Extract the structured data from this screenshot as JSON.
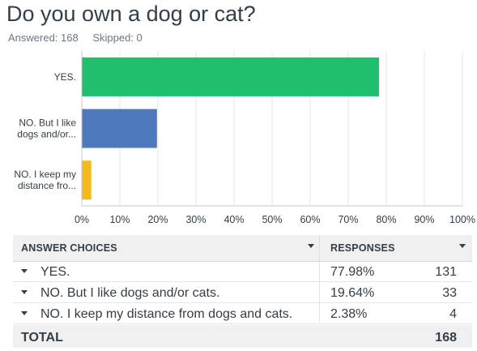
{
  "question": {
    "title": "Do you own a dog or cat?",
    "answered": "Answered: 168",
    "skipped": "Skipped: 0"
  },
  "chart_data": {
    "type": "bar",
    "orientation": "horizontal",
    "categories": [
      "YES.",
      "NO. But I like dogs and/or...",
      "NO. I keep my distance fro..."
    ],
    "category_lines": [
      [
        "YES."
      ],
      [
        "NO. But I like",
        "dogs and/or..."
      ],
      [
        "NO. I keep my",
        "distance fro..."
      ]
    ],
    "values": [
      77.98,
      19.64,
      2.38
    ],
    "colors": [
      "#1fbf6e",
      "#4f79bd",
      "#f4b91f"
    ],
    "xlim": [
      0,
      100
    ],
    "xticks": [
      "0%",
      "10%",
      "20%",
      "30%",
      "40%",
      "50%",
      "60%",
      "70%",
      "80%",
      "90%",
      "100%"
    ],
    "grid": true
  },
  "table": {
    "headers": {
      "choices": "ANSWER CHOICES",
      "responses": "RESPONSES"
    },
    "rows": [
      {
        "label": "YES.",
        "pct": "77.98%",
        "count": "131"
      },
      {
        "label": "NO. But I like dogs and/or cats.",
        "pct": "19.64%",
        "count": "33"
      },
      {
        "label": "NO. I keep my distance from dogs and cats.",
        "pct": "2.38%",
        "count": "4"
      }
    ],
    "total_label": "TOTAL",
    "total_count": "168"
  }
}
